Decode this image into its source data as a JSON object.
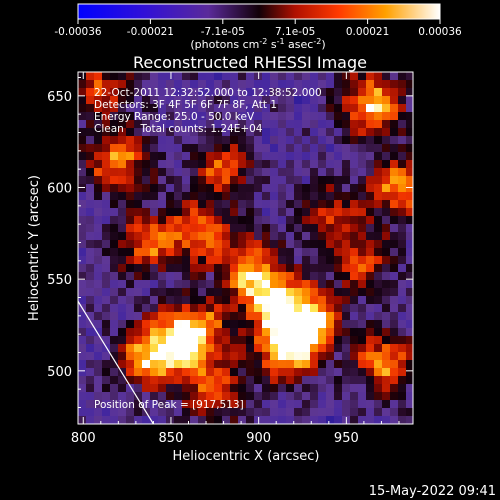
{
  "chart_data": {
    "type": "heatmap",
    "title": "Reconstructed RHESSI Image",
    "xlabel": "Heliocentric X (arcsec)",
    "ylabel": "Heliocentric Y (arcsec)",
    "xlim": [
      797,
      988
    ],
    "ylim": [
      471,
      663
    ],
    "xticks": [
      800,
      850,
      900,
      950
    ],
    "yticks": [
      500,
      550,
      600,
      650
    ],
    "colorbar": {
      "range": [
        -0.00036,
        0.00036
      ],
      "ticks": [
        "-0.00036",
        "-0.00021",
        "-7.1e-05",
        "7.1e-05",
        "0.00021",
        "0.00036"
      ],
      "unit_label": {
        "pre": "(photons cm",
        "exp1": "-2",
        "mid1": " s",
        "exp2": "-1",
        "mid2": " asec",
        "exp3": "-2",
        "post": ")"
      }
    },
    "annotations": [
      "22-Oct-2011 12:32:52.000 to 12:38:52.000",
      "Detectors: 3F 4F 5F 6F 7F 8F, Att 1",
      "Energy Range: 25.0 - 50.0 keV",
      "Clean     Total counts: 1.24E+04"
    ],
    "peak_label": "Position of Peak = [917,513]",
    "peak_position": [
      917,
      513
    ],
    "limb_line": [
      [
        797,
        538
      ],
      [
        840,
        471
      ]
    ],
    "sources": [
      {
        "x": 862,
        "y": 520,
        "intensity": 1.0
      },
      {
        "x": 838,
        "y": 508,
        "intensity": 0.85
      },
      {
        "x": 917,
        "y": 513,
        "intensity": 1.0
      },
      {
        "x": 905,
        "y": 540,
        "intensity": 0.8
      },
      {
        "x": 930,
        "y": 530,
        "intensity": 0.75
      },
      {
        "x": 965,
        "y": 645,
        "intensity": 0.85
      },
      {
        "x": 980,
        "y": 600,
        "intensity": 0.7
      },
      {
        "x": 972,
        "y": 505,
        "intensity": 0.7
      },
      {
        "x": 820,
        "y": 615,
        "intensity": 0.7
      },
      {
        "x": 835,
        "y": 570,
        "intensity": 0.6
      },
      {
        "x": 880,
        "y": 610,
        "intensity": 0.55
      },
      {
        "x": 865,
        "y": 575,
        "intensity": 0.6
      },
      {
        "x": 892,
        "y": 560,
        "intensity": 0.55
      },
      {
        "x": 940,
        "y": 585,
        "intensity": 0.5
      },
      {
        "x": 810,
        "y": 655,
        "intensity": 0.55
      },
      {
        "x": 960,
        "y": 560,
        "intensity": 0.5
      },
      {
        "x": 875,
        "y": 490,
        "intensity": 0.6
      }
    ]
  },
  "footer_date": "15-May-2022 09:41"
}
